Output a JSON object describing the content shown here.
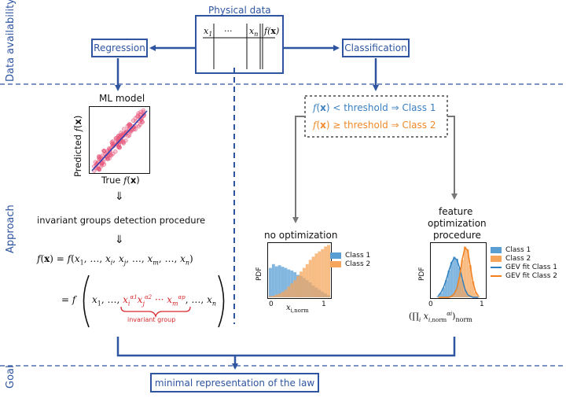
{
  "sections": {
    "data_availability": "Data availability",
    "approach": "Approach",
    "goal": "Goal"
  },
  "physical_data": {
    "title": "Physical data",
    "columns": [
      "x1",
      "···",
      "xn",
      "f(x)"
    ]
  },
  "regression": {
    "label": "Regression"
  },
  "classification": {
    "label": "Classification"
  },
  "ml_model": {
    "title": "ML model",
    "ylabel": "Predicted f(x)",
    "xlabel": "True f(x)"
  },
  "arrows": {
    "implies": "⇓"
  },
  "invariant_procedure": "invariant groups detection procedure",
  "equations": {
    "line1": "f(x) = f(x1, …, xi, xj, …, xm, …, xn)",
    "line2_prefix": "= f",
    "line2_args_start": "x1, …,",
    "line2_args_end": ", …, xn",
    "invariant_group_label": "invariant group"
  },
  "thresholds": {
    "class1": "f(x) < threshold ⇒ Class 1",
    "class2": "f(x) ≥ threshold ⇒ Class 2"
  },
  "no_optimization": {
    "title": "no optimization",
    "ylabel": "PDF",
    "xlabel": "xi,norm",
    "xticks": [
      "0",
      "1"
    ],
    "legend": [
      "Class 1",
      "Class 2"
    ]
  },
  "feature_optimization": {
    "title_lines": [
      "feature",
      "optimization",
      "procedure"
    ],
    "ylabel": "PDF",
    "xlabel": "(∏i xi,norm^αi)norm",
    "xticks": [
      "0",
      "1"
    ],
    "legend": [
      "Class 1",
      "Class 2",
      "GEV fit Class 1",
      "GEV fit Class 2"
    ]
  },
  "goal_box": "minimal representation of the law",
  "colors": {
    "accent_blue": "#2f55a0",
    "class1": "#5a9fd4",
    "class2": "#f5a55c",
    "gev1": "#2f7fbf",
    "gev2": "#f07f1c",
    "scatter": "#e8557a",
    "highlight": "#d6262b"
  },
  "chart_data": [
    {
      "type": "scatter",
      "title": "ML model",
      "xlabel": "True f(x)",
      "ylabel": "Predicted f(x)",
      "description": "predicted vs true values clustered along the identity line"
    },
    {
      "type": "bar",
      "title": "no optimization",
      "xlabel": "xi,norm",
      "ylabel": "PDF",
      "xlim": [
        0,
        1
      ],
      "x": [
        0.0,
        0.05,
        0.1,
        0.15,
        0.2,
        0.25,
        0.3,
        0.35,
        0.4,
        0.45,
        0.5,
        0.55,
        0.6,
        0.65,
        0.7,
        0.75,
        0.8,
        0.85,
        0.9,
        0.95
      ],
      "series": [
        {
          "name": "Class 1",
          "values": [
            0.55,
            0.62,
            0.58,
            0.6,
            0.57,
            0.55,
            0.52,
            0.5,
            0.47,
            0.42,
            0.4,
            0.36,
            0.32,
            0.28,
            0.22,
            0.18,
            0.14,
            0.1,
            0.07,
            0.04
          ]
        },
        {
          "name": "Class 2",
          "values": [
            0.02,
            0.03,
            0.05,
            0.07,
            0.1,
            0.14,
            0.2,
            0.26,
            0.32,
            0.4,
            0.48,
            0.55,
            0.62,
            0.7,
            0.76,
            0.82,
            0.86,
            0.9,
            0.95,
            0.98
          ]
        }
      ]
    },
    {
      "type": "bar",
      "title": "feature optimization procedure",
      "xlabel": "(∏i xi,norm^αi)norm",
      "ylabel": "PDF",
      "xlim": [
        0,
        1
      ],
      "x": [
        0.1,
        0.15,
        0.2,
        0.25,
        0.3,
        0.35,
        0.4,
        0.45,
        0.5,
        0.55,
        0.6,
        0.65,
        0.7,
        0.75,
        0.8,
        0.85
      ],
      "series": [
        {
          "name": "Class 1",
          "values": [
            0.03,
            0.08,
            0.18,
            0.32,
            0.5,
            0.66,
            0.76,
            0.72,
            0.55,
            0.32,
            0.14,
            0.05,
            0.02,
            0,
            0,
            0
          ]
        },
        {
          "name": "Class 2",
          "values": [
            0,
            0,
            0,
            0,
            0,
            0.02,
            0.06,
            0.15,
            0.38,
            0.7,
            0.95,
            0.9,
            0.6,
            0.3,
            0.1,
            0.03
          ]
        },
        {
          "name": "GEV fit Class 1",
          "values": [
            0.03,
            0.09,
            0.19,
            0.33,
            0.5,
            0.65,
            0.74,
            0.7,
            0.55,
            0.34,
            0.15,
            0.05,
            0.02,
            0,
            0,
            0
          ]
        },
        {
          "name": "GEV fit Class 2",
          "values": [
            0,
            0,
            0,
            0,
            0,
            0.02,
            0.07,
            0.17,
            0.4,
            0.72,
            0.93,
            0.88,
            0.58,
            0.28,
            0.1,
            0.03
          ]
        }
      ]
    }
  ]
}
